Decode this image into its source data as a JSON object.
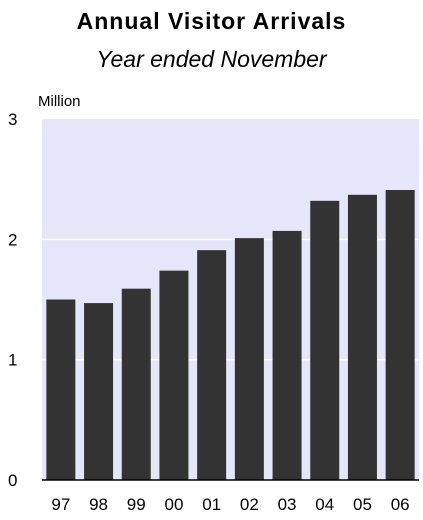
{
  "chart_data": {
    "type": "bar",
    "title": "Annual Visitor Arrivals",
    "subtitle": "Year ended November",
    "unit_label": "Million",
    "categories": [
      "97",
      "98",
      "99",
      "00",
      "01",
      "02",
      "03",
      "04",
      "05",
      "06"
    ],
    "values": [
      1.5,
      1.47,
      1.59,
      1.74,
      1.91,
      2.01,
      2.07,
      2.32,
      2.37,
      2.41
    ],
    "ylim": [
      0,
      3
    ],
    "yticks": [
      "0",
      "1",
      "2",
      "3"
    ],
    "grid": true,
    "colors": {
      "bar": "#333333",
      "plot_background": "#e6e6fa",
      "gridline": "#ffffff"
    }
  }
}
